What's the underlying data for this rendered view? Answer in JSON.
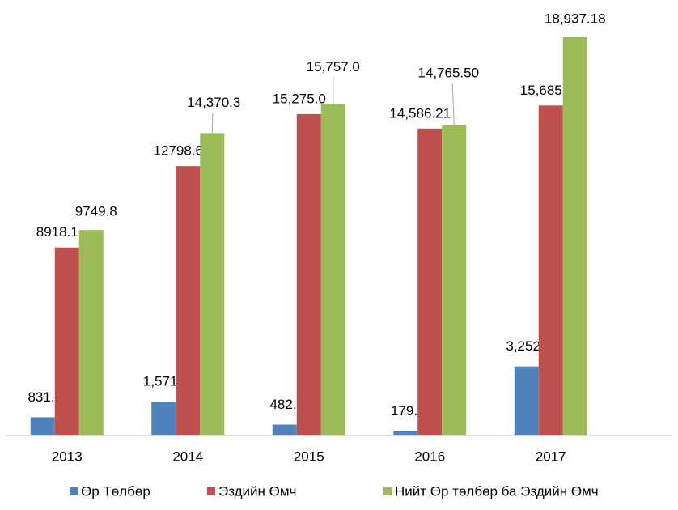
{
  "chart_data": {
    "type": "bar",
    "categories": [
      "2013",
      "2014",
      "2015",
      "2016",
      "2017"
    ],
    "ylim": [
      0,
      20000
    ],
    "legend": "bottom",
    "series": [
      {
        "name": "Өр Төлбөр",
        "color": "#4f81bd",
        "values": [
          831.7,
          1571.7,
          482.0,
          179.3,
          3252.6
        ],
        "value_labels": [
          "831.7",
          "1,571.7",
          "482.0",
          "179.3",
          "3,252.6"
        ]
      },
      {
        "name": "Эздийн Өмч",
        "color": "#c0504d",
        "values": [
          8918.1,
          12798.6,
          15275.0,
          14586.21,
          15685
        ],
        "value_labels": [
          "8918.1",
          "12798.6",
          "15,275.0",
          "14,586.21",
          "15,685"
        ]
      },
      {
        "name": "Нийт Өр төлбөр ба Эздийн Өмч",
        "color": "#9bbb59",
        "values": [
          9749.8,
          14370.3,
          15757.0,
          14765.5,
          18937.18
        ],
        "value_labels": [
          "9749.8",
          "14,370.3",
          "15,757.0",
          "14,765.50",
          "18,937.18"
        ]
      }
    ]
  }
}
